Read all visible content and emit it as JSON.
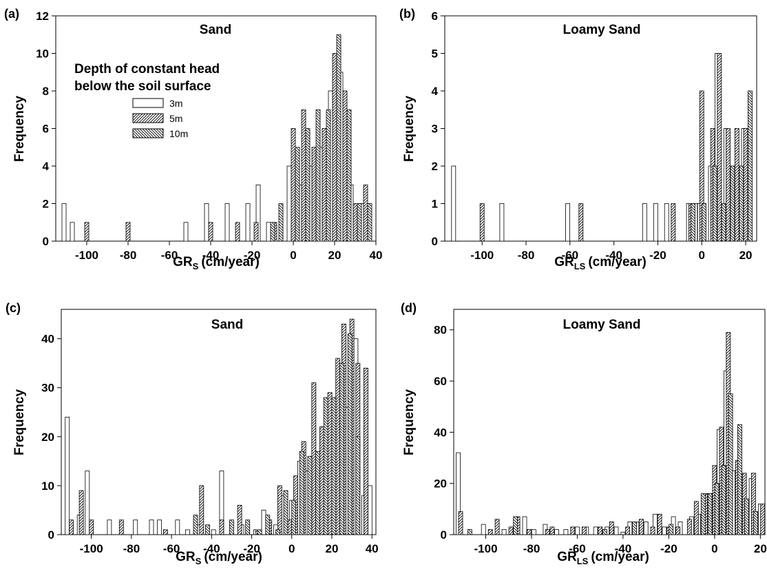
{
  "figure": {
    "legend": {
      "title_line1": "Depth of constant head",
      "title_line2": "below the soil surface",
      "entries": [
        {
          "label": "3m",
          "pattern": "none"
        },
        {
          "label": "5m",
          "pattern": "hatch-forward"
        },
        {
          "label": "10m",
          "pattern": "hatch-backward"
        }
      ]
    }
  },
  "chart_data": [
    {
      "panel": "(a)",
      "type": "bar",
      "title": "Sand",
      "xlabel_main": "GR",
      "xlabel_sub": "S",
      "xlabel_unit": "(cm/year)",
      "ylabel": "Frequency",
      "xlim": [
        -115,
        40
      ],
      "ylim": [
        0,
        12
      ],
      "xticks": [
        -100,
        -80,
        -60,
        -40,
        -20,
        0,
        20,
        40
      ],
      "yticks": [
        0,
        2,
        4,
        6,
        8,
        10,
        12
      ],
      "bar_width": 1.8,
      "series": [
        {
          "name": "3m",
          "x": [
            -111,
            -107,
            -52,
            -42,
            -32,
            -22,
            -17,
            -12,
            -2,
            3,
            8,
            13,
            18,
            23,
            28,
            33
          ],
          "values": [
            2,
            1,
            1,
            2,
            2,
            2,
            3,
            1,
            4,
            3,
            4,
            5,
            8,
            9,
            3,
            2
          ]
        },
        {
          "name": "5m",
          "x": [
            -100,
            -80,
            -40,
            -27,
            -18,
            -9,
            0,
            5,
            10,
            15,
            20,
            25,
            30,
            35
          ],
          "values": [
            1,
            1,
            1,
            1,
            1,
            1,
            6,
            7,
            5,
            6,
            10,
            8,
            2,
            3
          ]
        },
        {
          "name": "10m",
          "x": [
            -10,
            -6,
            2,
            7,
            12,
            17,
            22,
            27,
            32,
            37
          ],
          "values": [
            1,
            2,
            5,
            6,
            7,
            7,
            11,
            7,
            2,
            2
          ]
        }
      ]
    },
    {
      "panel": "(b)",
      "type": "bar",
      "title": "Loamy Sand",
      "xlabel_main": "GR",
      "xlabel_sub": "LS",
      "xlabel_unit": "(cm/year)",
      "ylabel": "Frequency",
      "xlim": [
        -117,
        25
      ],
      "ylim": [
        0,
        6
      ],
      "xticks": [
        -100,
        -80,
        -60,
        -40,
        -20,
        0,
        20
      ],
      "yticks": [
        0,
        1,
        2,
        3,
        4,
        5,
        6
      ],
      "bar_width": 1.0,
      "series": [
        {
          "name": "3m",
          "x": [
            -113,
            -91,
            -61,
            -26,
            -21,
            -16,
            -6,
            -3,
            -1,
            4,
            7,
            11,
            15,
            19
          ],
          "values": [
            2,
            1,
            1,
            1,
            1,
            1,
            1,
            1,
            1,
            2,
            5,
            3,
            2,
            3
          ]
        },
        {
          "name": "5m",
          "x": [
            -100,
            -55,
            -13,
            -5,
            0,
            5,
            8,
            12,
            16,
            20
          ],
          "values": [
            1,
            1,
            1,
            1,
            4,
            3,
            5,
            3,
            3,
            3
          ]
        },
        {
          "name": "10m",
          "x": [
            -4,
            1,
            6,
            10,
            14,
            18,
            22
          ],
          "values": [
            1,
            1,
            2,
            1,
            2,
            2,
            4
          ]
        }
      ]
    },
    {
      "panel": "(c)",
      "type": "bar",
      "title": "Sand",
      "xlabel_main": "GR",
      "xlabel_sub": "S",
      "xlabel_unit": "(cm/year)",
      "ylabel": "Frequency",
      "xlim": [
        -115,
        42
      ],
      "ylim": [
        0,
        46
      ],
      "xticks": [
        -100,
        -80,
        -60,
        -40,
        -20,
        0,
        20,
        40
      ],
      "yticks": [
        0,
        10,
        20,
        30,
        40
      ],
      "bar_width": 1.0,
      "series": [
        {
          "name": "3m",
          "x": [
            -112,
            -106,
            -102,
            -91,
            -78,
            -70,
            -66,
            -57,
            -52,
            -46,
            -39,
            -35,
            -25,
            -18,
            -14,
            -8,
            -4,
            0,
            4,
            8,
            12,
            16,
            20,
            24,
            28,
            32,
            36,
            39
          ],
          "values": [
            24,
            4,
            13,
            3,
            3,
            3,
            3,
            3,
            1,
            2,
            1,
            13,
            2,
            1,
            5,
            2,
            8,
            7,
            15,
            13,
            14,
            22,
            26,
            34,
            26,
            40,
            8,
            10
          ]
        },
        {
          "name": "5m",
          "x": [
            -110,
            -105,
            -100,
            -85,
            -63,
            -45,
            -35,
            -26,
            -17,
            -11,
            -6,
            -1,
            2,
            6,
            11,
            15,
            19,
            23,
            26,
            30,
            33,
            37
          ],
          "values": [
            3,
            9,
            3,
            3,
            1,
            10,
            3,
            6,
            1,
            3,
            10,
            3,
            12,
            19,
            31,
            22,
            29,
            36,
            43,
            44,
            35,
            34
          ]
        },
        {
          "name": "10m",
          "x": [
            -48,
            -42,
            -30,
            -22,
            -16,
            -12,
            -7,
            -3,
            1,
            5,
            9,
            13,
            17,
            21,
            25,
            29,
            33
          ],
          "values": [
            4,
            2,
            3,
            3,
            1,
            4,
            1,
            9,
            7,
            17,
            16,
            17,
            28,
            28,
            35,
            41,
            20
          ]
        }
      ]
    },
    {
      "panel": "(d)",
      "type": "bar",
      "title": "Loamy Sand",
      "xlabel_main": "GR",
      "xlabel_sub": "LS",
      "xlabel_unit": "(cm/year)",
      "ylabel": "Frequency",
      "xlim": [
        -114,
        22
      ],
      "ylim": [
        0,
        88
      ],
      "xticks": [
        -100,
        -80,
        -60,
        -40,
        -20,
        0,
        20
      ],
      "yticks": [
        0,
        20,
        40,
        60,
        80
      ],
      "bar_width": 0.8,
      "series": [
        {
          "name": "3m",
          "x": [
            -112,
            -101,
            -92,
            -83,
            -79,
            -74,
            -69,
            -65,
            -60,
            -56,
            -52,
            -47,
            -43,
            -40,
            -37,
            -34,
            -30,
            -26,
            -22,
            -18,
            -15,
            -10,
            -7,
            -3,
            -1,
            2,
            5,
            8,
            12,
            16,
            20
          ],
          "values": [
            32,
            4,
            2,
            7,
            2,
            4,
            2,
            2,
            3,
            3,
            3,
            3,
            3,
            1,
            5,
            5,
            5,
            8,
            3,
            7,
            5,
            7,
            8,
            16,
            16,
            41,
            64,
            25,
            22,
            22,
            12
          ]
        },
        {
          "name": "5m",
          "x": [
            -111,
            -98,
            -95,
            -89,
            -86,
            -81,
            -73,
            -71,
            -62,
            -57,
            -50,
            -45,
            -38,
            -32,
            -27,
            -24,
            -20,
            -16,
            -11,
            -8,
            -4,
            0,
            3,
            6,
            10,
            13,
            17,
            21
          ],
          "values": [
            9,
            2,
            6,
            3,
            7,
            2,
            2,
            3,
            3,
            3,
            3,
            5,
            3,
            6,
            3,
            8,
            3,
            3,
            6,
            13,
            16,
            27,
            42,
            79,
            29,
            24,
            24,
            12
          ]
        },
        {
          "name": "10m",
          "x": [
            -107,
            -87,
            -48,
            -35,
            -19,
            -5,
            -2,
            1,
            4,
            7,
            11,
            14,
            18
          ],
          "values": [
            2,
            7,
            2,
            5,
            4,
            16,
            16,
            20,
            27,
            55,
            43,
            14,
            9
          ]
        }
      ]
    }
  ]
}
